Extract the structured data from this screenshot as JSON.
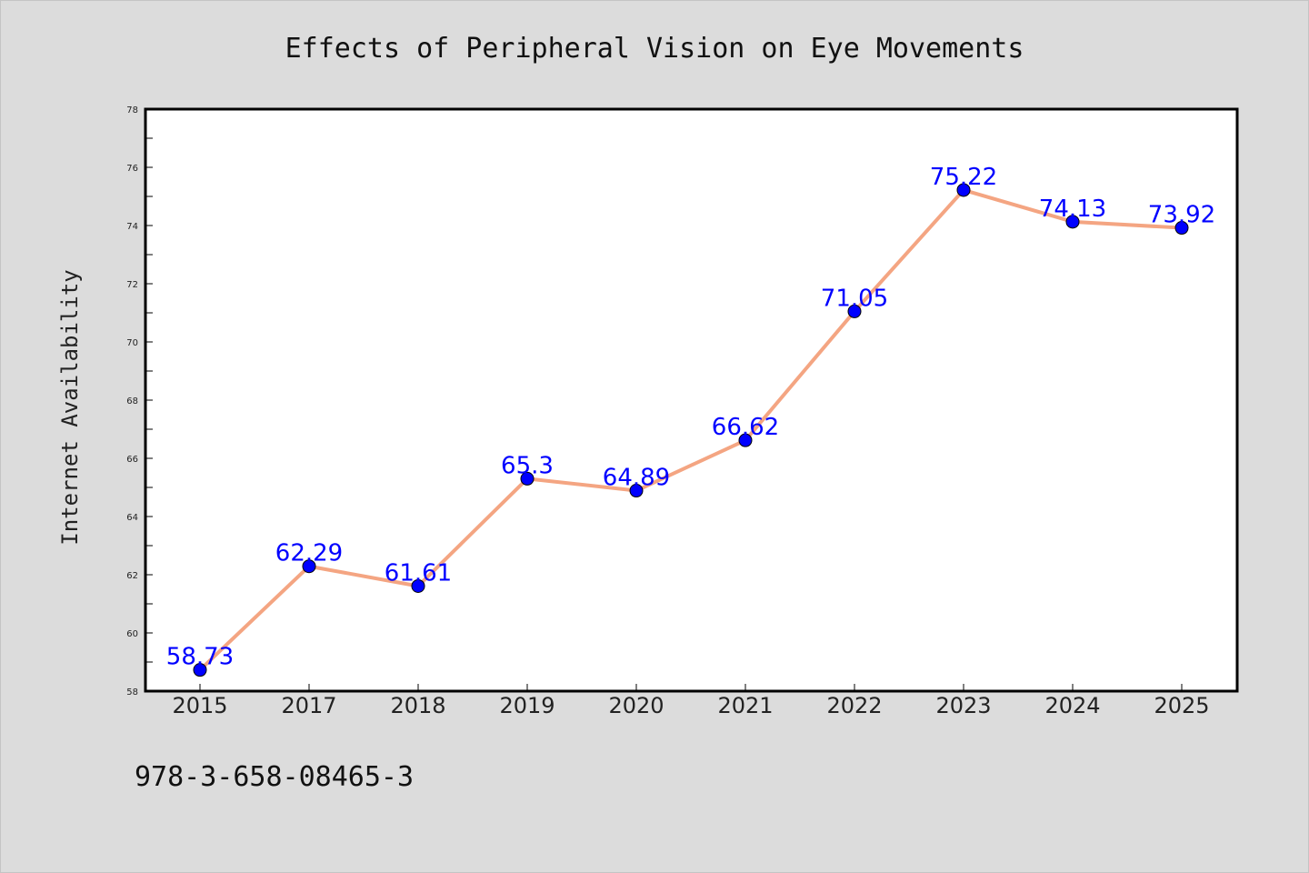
{
  "chart_data": {
    "type": "line",
    "title": "Effects of Peripheral Vision on Eye Movements",
    "xlabel": "",
    "ylabel": "Internet Availability",
    "categories": [
      "2015",
      "2017",
      "2018",
      "2019",
      "2020",
      "2021",
      "2022",
      "2023",
      "2024",
      "2025"
    ],
    "values": [
      58.73,
      62.29,
      61.61,
      65.3,
      64.89,
      66.62,
      71.05,
      75.22,
      74.13,
      73.92
    ],
    "data_labels": [
      "58.73",
      "62.29",
      "61.61",
      "65.3",
      "64.89",
      "66.62",
      "71.05",
      "75.22",
      "74.13",
      "73.92"
    ],
    "ylim": [
      58,
      78
    ],
    "yticks": [
      58,
      60,
      62,
      64,
      66,
      68,
      70,
      72,
      74,
      76,
      78
    ],
    "grid": false,
    "line_color": "#f4a582",
    "marker_color": "#0000ff",
    "label_color": "#0000ff"
  },
  "footer": {
    "isbn": "978-3-658-08465-3"
  }
}
